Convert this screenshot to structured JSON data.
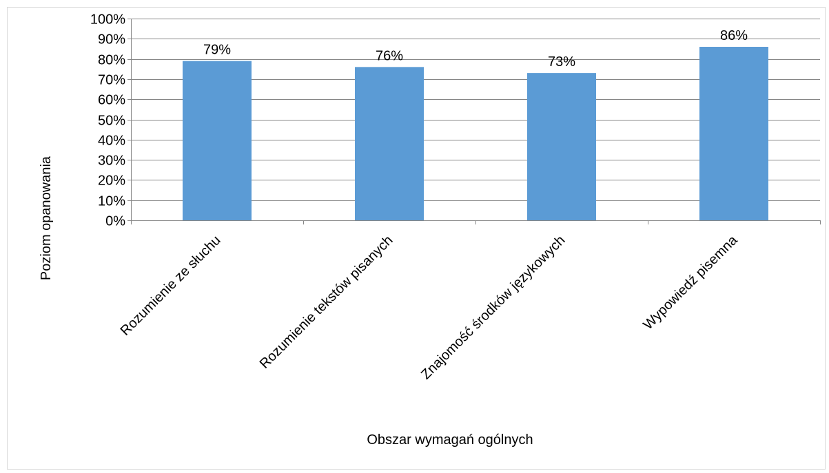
{
  "chart_data": {
    "type": "bar",
    "title": "",
    "xlabel": "Obszar wymagań ogólnych",
    "ylabel": "Poziom opanowania",
    "categories": [
      "Rozumienie ze słuchu",
      "Rozumienie tekstów pisanych",
      "Znajomość środków językowych",
      "Wypowiedź pisemna"
    ],
    "values": [
      79,
      76,
      73,
      86
    ],
    "data_labels": [
      "79%",
      "76%",
      "73%",
      "86%"
    ],
    "ylim": [
      0,
      100
    ],
    "yticks": [
      0,
      10,
      20,
      30,
      40,
      50,
      60,
      70,
      80,
      90,
      100
    ],
    "ytick_labels": [
      "0%",
      "10%",
      "20%",
      "30%",
      "40%",
      "50%",
      "60%",
      "70%",
      "80%",
      "90%",
      "100%"
    ],
    "grid": true,
    "legend": "none",
    "colors": {
      "bar": "#5b9bd5",
      "grid": "#868686",
      "axis": "#868686",
      "frame": "#d9d9d9",
      "text": "#000000"
    }
  }
}
